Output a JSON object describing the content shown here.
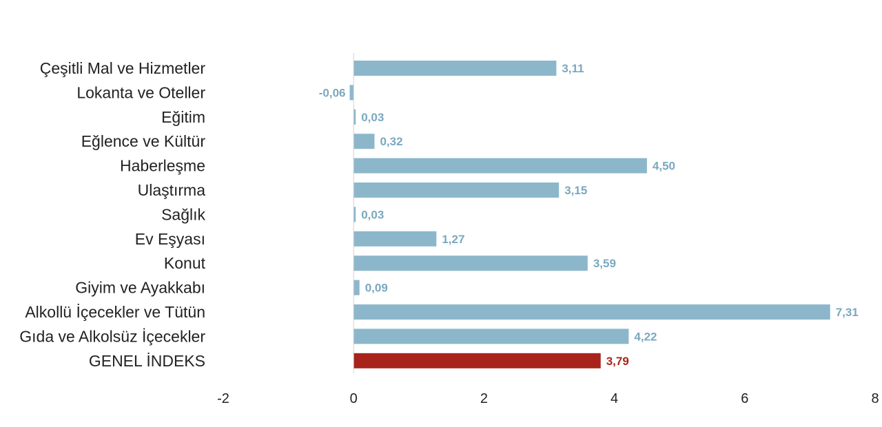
{
  "chart_data": {
    "type": "bar",
    "orientation": "horizontal",
    "title": "",
    "xlabel": "",
    "ylabel": "",
    "xlim": [
      -2,
      8
    ],
    "xticks": [
      -2,
      0,
      2,
      4,
      6,
      8
    ],
    "xtick_labels": [
      "-2",
      "0",
      "2",
      "4",
      "6",
      "8"
    ],
    "grid": false,
    "legend": "none",
    "colors": {
      "bar": "#8cb7cb",
      "highlight": "#a8231b",
      "value_text": "#7aa8bf",
      "highlight_text": "#a8231b",
      "zero_line": "#d0d0d0"
    },
    "categories": [
      "Çeşitli Mal ve Hizmetler",
      "Lokanta ve Oteller",
      "Eğitim",
      "Eğlence ve Kültür",
      "Haberleşme",
      "Ulaştırma",
      "Sağlık",
      "Ev Eşyası",
      "Konut",
      "Giyim ve Ayakkabı",
      "Alkollü İçecekler ve Tütün",
      "Gıda ve Alkolsüz İçecekler",
      "GENEL İNDEKS"
    ],
    "values": [
      3.11,
      -0.06,
      0.03,
      0.32,
      4.5,
      3.15,
      0.03,
      1.27,
      3.59,
      0.09,
      7.31,
      4.22,
      3.79
    ],
    "value_labels": [
      "3,11",
      "-0,06",
      "0,03",
      "0,32",
      "4,50",
      "3,15",
      "0,03",
      "1,27",
      "3,59",
      "0,09",
      "7,31",
      "4,22",
      "3,79"
    ],
    "highlighted": [
      "GENEL İNDEKS"
    ]
  }
}
